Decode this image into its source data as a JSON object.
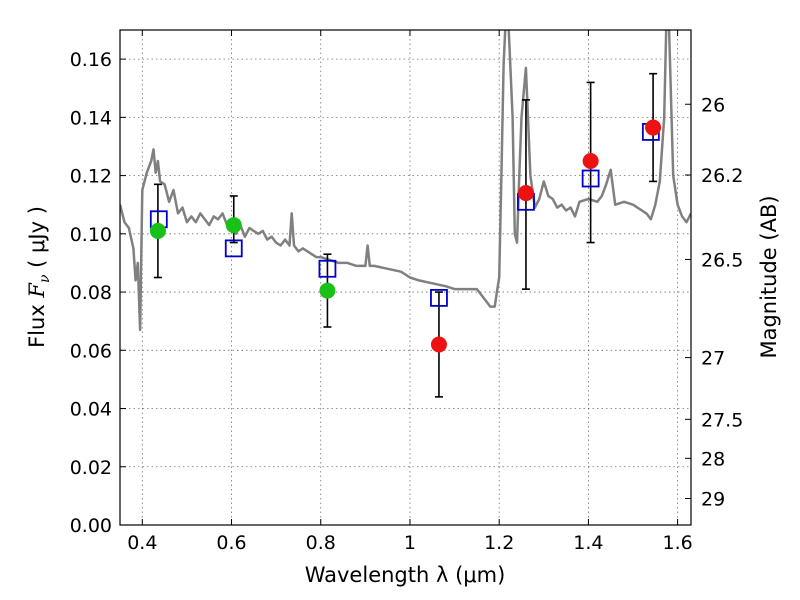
{
  "chart_data": {
    "type": "scatter",
    "xlabel": "Wavelength  λ (μm)",
    "ylabel": "Flux  F_ν  ( μJy )",
    "ylabel_parts": {
      "prefix": "Flux  ",
      "symbol": "F",
      "subscript": "ν",
      "suffix": "  ( μJy )"
    },
    "y2label": "Magnitude (AB)",
    "xlim": [
      0.35,
      1.63
    ],
    "ylim": [
      0.0,
      0.17
    ],
    "grid": true,
    "x_ticks": [
      0.4,
      0.6,
      0.8,
      1.0,
      1.2,
      1.4,
      1.6
    ],
    "x_tick_labels": [
      "0.4",
      "0.6",
      "0.8",
      "1",
      "1.2",
      "1.4",
      "1.6"
    ],
    "y_ticks": [
      0.0,
      0.02,
      0.04,
      0.06,
      0.08,
      0.1,
      0.12,
      0.14,
      0.16
    ],
    "y_tick_labels": [
      "0.00",
      "0.02",
      "0.04",
      "0.06",
      "0.08",
      "0.10",
      "0.12",
      "0.14",
      "0.16"
    ],
    "y2_ticks": [
      {
        "label": "26",
        "flux": 0.1445
      },
      {
        "label": "26.2",
        "flux": 0.1202
      },
      {
        "label": "26.5",
        "flux": 0.0912
      },
      {
        "label": "27",
        "flux": 0.0575
      },
      {
        "label": "27.5",
        "flux": 0.0363
      },
      {
        "label": "28",
        "flux": 0.0229
      },
      {
        "label": "29",
        "flux": 0.0091
      }
    ],
    "series": [
      {
        "kind": "line",
        "color": "#808080",
        "x": [
          0.35,
          0.36,
          0.37,
          0.38,
          0.385,
          0.39,
          0.395,
          0.4,
          0.41,
          0.42,
          0.425,
          0.43,
          0.435,
          0.44,
          0.45,
          0.46,
          0.47,
          0.48,
          0.49,
          0.5,
          0.51,
          0.52,
          0.53,
          0.54,
          0.55,
          0.56,
          0.57,
          0.58,
          0.59,
          0.6,
          0.61,
          0.62,
          0.63,
          0.64,
          0.65,
          0.66,
          0.67,
          0.68,
          0.69,
          0.7,
          0.71,
          0.72,
          0.73,
          0.735,
          0.74,
          0.745,
          0.75,
          0.76,
          0.77,
          0.78,
          0.79,
          0.8,
          0.82,
          0.84,
          0.86,
          0.88,
          0.9,
          0.905,
          0.91,
          0.915,
          0.92,
          0.95,
          0.98,
          1.0,
          1.02,
          1.05,
          1.08,
          1.1,
          1.12,
          1.15,
          1.18,
          1.19,
          1.195,
          1.2,
          1.205,
          1.21,
          1.215,
          1.22,
          1.23,
          1.235,
          1.24,
          1.245,
          1.25,
          1.26,
          1.27,
          1.28,
          1.29,
          1.3,
          1.31,
          1.32,
          1.33,
          1.34,
          1.35,
          1.36,
          1.37,
          1.38,
          1.4,
          1.42,
          1.43,
          1.44,
          1.45,
          1.46,
          1.48,
          1.5,
          1.52,
          1.53,
          1.54,
          1.55,
          1.56,
          1.57,
          1.575,
          1.58,
          1.59,
          1.6,
          1.61,
          1.62,
          1.63
        ],
        "y": [
          0.11,
          0.104,
          0.102,
          0.095,
          0.084,
          0.09,
          0.067,
          0.115,
          0.121,
          0.125,
          0.129,
          0.121,
          0.125,
          0.118,
          0.117,
          0.111,
          0.115,
          0.107,
          0.109,
          0.104,
          0.106,
          0.104,
          0.107,
          0.105,
          0.103,
          0.106,
          0.105,
          0.107,
          0.103,
          0.105,
          0.1,
          0.103,
          0.099,
          0.102,
          0.101,
          0.1,
          0.101,
          0.098,
          0.099,
          0.097,
          0.096,
          0.098,
          0.096,
          0.107,
          0.096,
          0.095,
          0.094,
          0.095,
          0.094,
          0.093,
          0.092,
          0.092,
          0.091,
          0.09,
          0.09,
          0.089,
          0.089,
          0.096,
          0.089,
          0.089,
          0.089,
          0.088,
          0.087,
          0.085,
          0.084,
          0.083,
          0.082,
          0.081,
          0.081,
          0.081,
          0.075,
          0.075,
          0.08,
          0.085,
          0.12,
          0.158,
          0.175,
          0.175,
          0.14,
          0.1,
          0.097,
          0.12,
          0.14,
          0.157,
          0.12,
          0.109,
          0.112,
          0.118,
          0.113,
          0.112,
          0.109,
          0.11,
          0.108,
          0.109,
          0.106,
          0.111,
          0.112,
          0.111,
          0.113,
          0.117,
          0.122,
          0.11,
          0.111,
          0.11,
          0.108,
          0.107,
          0.105,
          0.11,
          0.118,
          0.14,
          0.175,
          0.175,
          0.12,
          0.11,
          0.106,
          0.104,
          0.107
        ]
      },
      {
        "kind": "model-squares",
        "color": "#0000cc",
        "x": [
          0.437,
          0.605,
          0.815,
          1.065,
          1.26,
          1.405,
          1.54
        ],
        "y": [
          0.105,
          0.095,
          0.088,
          0.078,
          0.111,
          0.119,
          0.135
        ]
      },
      {
        "kind": "points",
        "color": "#18c018",
        "x": [
          0.435,
          0.605,
          0.815
        ],
        "y": [
          0.101,
          0.103,
          0.0805
        ],
        "err_low": [
          0.085,
          0.097,
          0.068
        ],
        "err_high": [
          0.117,
          0.113,
          0.093
        ]
      },
      {
        "kind": "points",
        "color": "#ee1111",
        "x": [
          1.065,
          1.26,
          1.405,
          1.545
        ],
        "y": [
          0.062,
          0.114,
          0.125,
          0.1365
        ],
        "err_low": [
          0.044,
          0.081,
          0.097,
          0.118
        ],
        "err_high": [
          0.08,
          0.146,
          0.152,
          0.155
        ]
      }
    ]
  }
}
